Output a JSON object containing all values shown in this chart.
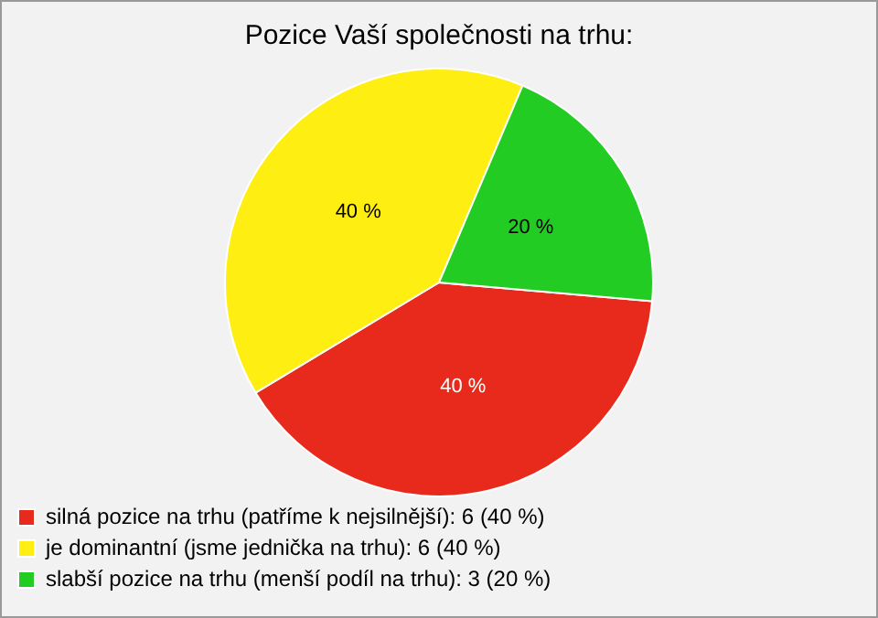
{
  "chart_data": {
    "type": "pie",
    "title": "Pozice Vaší společnosti na trhu:",
    "categories": [
      "silná pozice na trhu (patříme k nejsilnější): 6 (40 %)",
      "je dominantní (jsme jednička na trhu): 6 (40 %)",
      "slabší pozice na trhu (menší podíl na trhu): 3 (20 %)"
    ],
    "values": [
      40,
      40,
      20
    ],
    "colors": [
      "#e82a1c",
      "#ffee11",
      "#22cc22"
    ],
    "value_labels": [
      "40 %",
      "40 %",
      "20 %"
    ],
    "legend": "bottom left"
  }
}
